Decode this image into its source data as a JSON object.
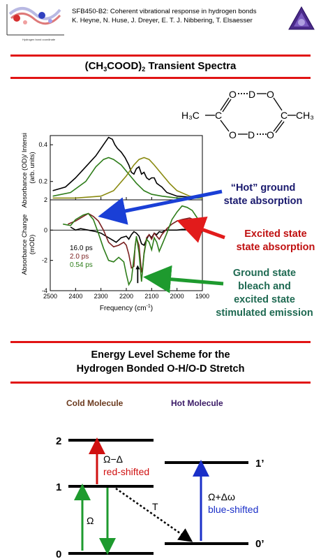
{
  "header": {
    "line1": "SFB450-B2: Coherent vibrational response in hydrogen bonds",
    "line2": "K. Heyne, N. Huse, J. Dreyer, E. T. J. Nibbering, T. Elsaesser"
  },
  "section1": {
    "title_a": "(CH",
    "title_sub1": "3",
    "title_b": "COOD)",
    "title_sub2": "2",
    "title_c": " Transient Spectra"
  },
  "molecule": {
    "left_group": "H₃C",
    "right_group": "CH₃",
    "atoms": [
      "O",
      "D",
      "O",
      "C",
      "C",
      "O",
      "D",
      "O"
    ]
  },
  "colors": {
    "red_bar": "#e11414",
    "black_trace": "#000000",
    "brown_trace": "#7a2020",
    "green_trace": "#2e7d1a",
    "olive_trace": "#8a8a10",
    "blue_arrow": "#1a3fd6",
    "red_arrow": "#e21b1b",
    "green_arrow": "#1e9a2e"
  },
  "chart_data": [
    {
      "type": "line",
      "ylabel": "Absorbance (OD)/ Intensity (arb. units)",
      "xlim": [
        2500,
        1900
      ],
      "ylim": [
        0.1,
        0.45
      ],
      "yticks": [
        "0.4",
        "0.2"
      ],
      "series": [
        {
          "color": "black",
          "x": [
            2490,
            2440,
            2400,
            2360,
            2320,
            2290,
            2270,
            2255,
            2245,
            2235,
            2220,
            2205,
            2190,
            2180,
            2170,
            2160,
            2150,
            2140,
            2130,
            2120,
            2110,
            2100,
            2090,
            2080,
            2070,
            2060,
            2040,
            2000,
            1950,
            1900
          ],
          "y": [
            0.15,
            0.17,
            0.22,
            0.28,
            0.34,
            0.4,
            0.44,
            0.43,
            0.4,
            0.38,
            0.36,
            0.33,
            0.29,
            0.25,
            0.24,
            0.27,
            0.28,
            0.24,
            0.25,
            0.22,
            0.21,
            0.22,
            0.22,
            0.19,
            0.18,
            0.17,
            0.14,
            0.12,
            0.115,
            0.11
          ]
        },
        {
          "color": "green",
          "x": [
            2490,
            2420,
            2360,
            2320,
            2290,
            2270,
            2250,
            2220,
            2190,
            2160,
            2130,
            2100,
            2060,
            2000,
            1950,
            1900
          ],
          "y": [
            0.12,
            0.14,
            0.2,
            0.28,
            0.32,
            0.33,
            0.32,
            0.29,
            0.24,
            0.19,
            0.15,
            0.13,
            0.12,
            0.11,
            0.11,
            0.11
          ]
        },
        {
          "color": "olive",
          "x": [
            2490,
            2400,
            2300,
            2250,
            2200,
            2170,
            2150,
            2130,
            2110,
            2090,
            2060,
            2030,
            2000,
            1950,
            1900
          ],
          "y": [
            0.11,
            0.11,
            0.12,
            0.15,
            0.23,
            0.29,
            0.32,
            0.33,
            0.32,
            0.29,
            0.24,
            0.19,
            0.15,
            0.12,
            0.11
          ]
        }
      ]
    },
    {
      "type": "line",
      "xlabel": "Frequency (cm",
      "xlabel_sup": "-1",
      "xlabel_end": ")",
      "ylabel": "Absorbance Change (mOD)",
      "xlim": [
        2500,
        1900
      ],
      "ylim": [
        -4,
        2
      ],
      "xticks": [
        "2500",
        "2400",
        "2300",
        "2200",
        "2100",
        "2000",
        "1900"
      ],
      "yticks": [
        "2",
        "0",
        "-2",
        "-4"
      ],
      "legend": [
        "16.0 ps",
        "2.0 ps",
        "0.54 ps"
      ],
      "series": [
        {
          "name": "16.0 ps",
          "color": "black",
          "x": [
            2420,
            2400,
            2380,
            2350,
            2320,
            2300,
            2280,
            2260,
            2240,
            2220,
            2200,
            2190,
            2180,
            2170,
            2160,
            2150,
            2140,
            2130,
            2120,
            2110,
            2100,
            2090,
            2080,
            2070,
            2060,
            2050,
            2040,
            2020,
            2000,
            1980,
            1960,
            1940,
            1920
          ],
          "y": [
            0.2,
            0.0,
            0.1,
            0.0,
            -0.1,
            -0.2,
            -0.4,
            -0.6,
            -0.8,
            -0.5,
            -0.4,
            -0.6,
            -0.3,
            -0.1,
            -0.2,
            -0.4,
            -0.9,
            -1.0,
            -0.6,
            -0.3,
            -0.5,
            -0.2,
            -0.3,
            -0.1,
            -0.15,
            -0.05,
            0.0,
            0.0,
            0.0,
            0.05,
            0.05,
            0.0,
            0.0
          ]
        },
        {
          "name": "2.0 ps",
          "color": "brown",
          "x": [
            2430,
            2400,
            2370,
            2350,
            2330,
            2310,
            2290,
            2270,
            2250,
            2230,
            2210,
            2200,
            2190,
            2180,
            2170,
            2165,
            2160,
            2150,
            2140,
            2135,
            2130,
            2120,
            2110,
            2100,
            2090,
            2080,
            2070,
            2060,
            2050,
            2040,
            2020,
            2000,
            1980,
            1950,
            1920,
            1900
          ],
          "y": [
            0.4,
            0.6,
            0.9,
            1.1,
            0.9,
            0.6,
            0.0,
            -0.8,
            -1.1,
            -1.0,
            -0.8,
            -1.0,
            -1.6,
            -2.5,
            -2.4,
            -1.0,
            -0.5,
            -1.0,
            -2.8,
            -2.4,
            -1.5,
            -0.5,
            -0.3,
            -0.6,
            -0.2,
            -0.4,
            -0.6,
            -0.3,
            -0.1,
            0.1,
            0.4,
            0.6,
            0.7,
            0.8,
            0.6,
            0.3
          ]
        },
        {
          "name": "0.54 ps",
          "color": "green",
          "x": [
            2450,
            2420,
            2400,
            2370,
            2350,
            2330,
            2310,
            2290,
            2270,
            2250,
            2230,
            2210,
            2200,
            2190,
            2180,
            2170,
            2160,
            2150,
            2140,
            2135,
            2130,
            2120,
            2110,
            2100,
            2090,
            2080,
            2070,
            2060,
            2040,
            2020,
            2000,
            1980,
            1960,
            1940,
            1920,
            1900
          ],
          "y": [
            0.4,
            0.3,
            0.7,
            1.0,
            1.1,
            0.7,
            -0.2,
            -1.2,
            -2.0,
            -2.1,
            -1.8,
            -2.1,
            -2.9,
            -3.6,
            -3.3,
            -1.8,
            -0.4,
            -1.5,
            -3.4,
            -2.5,
            -1.6,
            -0.6,
            -0.8,
            -1.3,
            -0.5,
            -0.8,
            -1.4,
            -1.0,
            -0.2,
            0.7,
            1.2,
            1.6,
            1.5,
            1.3,
            0.8,
            0.4
          ]
        }
      ]
    }
  ],
  "annotations": {
    "hot_l1": "“Hot” ground",
    "hot_l2": "state absorption",
    "exc_l1": "Excited state",
    "exc_l2": "state absorption",
    "gsb_l1": "Ground state",
    "gsb_l2": "bleach and",
    "gsb_l3": "excited state",
    "gsb_l4": "stimulated emission"
  },
  "section2": {
    "title_l1": "Energy Level Scheme for the",
    "title_l2": "Hydrogen Bonded O-H/O-D Stretch"
  },
  "energy": {
    "cold_label": "Cold Molecule",
    "hot_label": "Hot Molecule",
    "levels_cold": [
      "2",
      "1",
      "0"
    ],
    "levels_hot": [
      "1’",
      "0’"
    ],
    "omega": "Ω",
    "red_sym": "−Δ",
    "red_shifted": "red-shifted",
    "blue_sym": "+Δω",
    "blue_shifted": "blue-shifted",
    "t_label": "T"
  }
}
